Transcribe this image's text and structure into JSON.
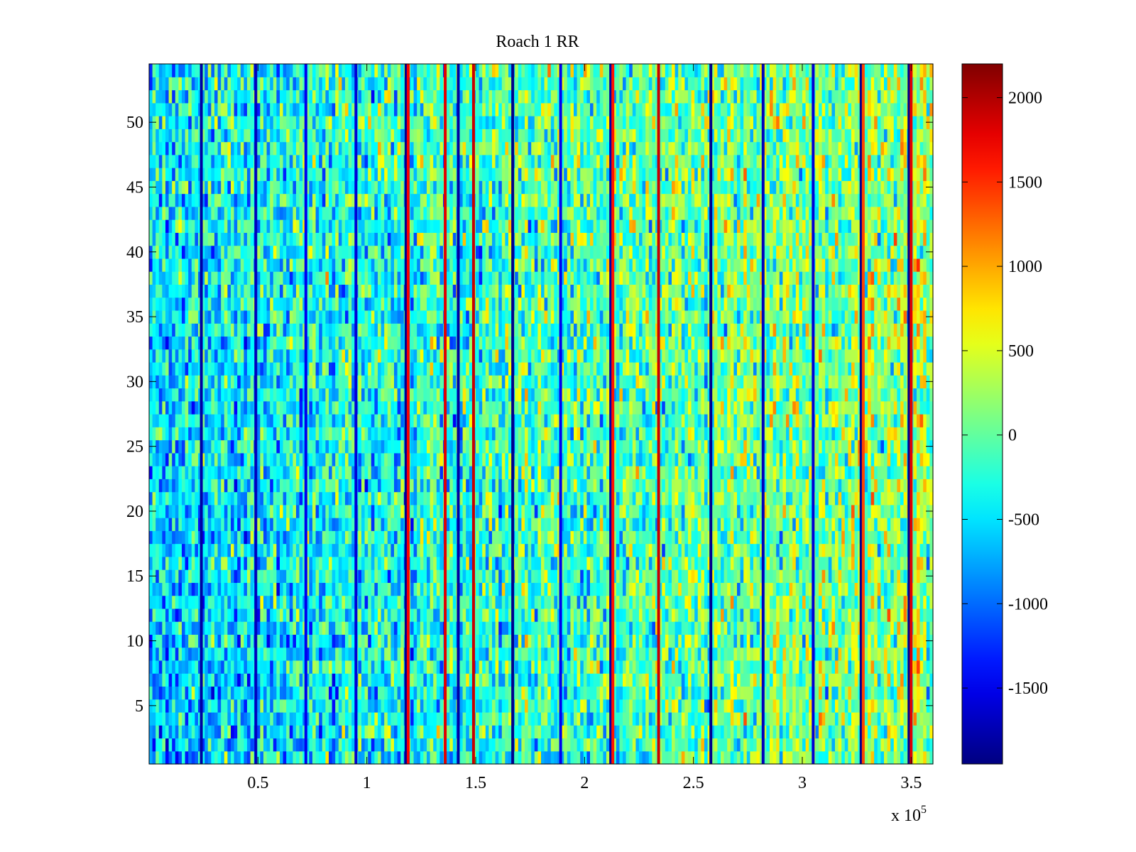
{
  "chart_data": {
    "type": "heatmap",
    "title": "Roach 1 RR",
    "xlabel": "",
    "ylabel": "",
    "x_multiplier_label": {
      "base": "x 10",
      "exponent": "5"
    },
    "xlim": [
      0,
      3.6
    ],
    "ylim": [
      0.5,
      54.5
    ],
    "rows": 54,
    "x_ticks": [
      {
        "value": 0.5,
        "label": "0.5"
      },
      {
        "value": 1.0,
        "label": "1"
      },
      {
        "value": 1.5,
        "label": "1.5"
      },
      {
        "value": 2.0,
        "label": "2"
      },
      {
        "value": 2.5,
        "label": "2.5"
      },
      {
        "value": 3.0,
        "label": "3"
      },
      {
        "value": 3.5,
        "label": "3.5"
      }
    ],
    "y_ticks": [
      {
        "value": 5,
        "label": "5"
      },
      {
        "value": 10,
        "label": "10"
      },
      {
        "value": 15,
        "label": "15"
      },
      {
        "value": 20,
        "label": "20"
      },
      {
        "value": 25,
        "label": "25"
      },
      {
        "value": 30,
        "label": "30"
      },
      {
        "value": 35,
        "label": "35"
      },
      {
        "value": 40,
        "label": "40"
      },
      {
        "value": 45,
        "label": "45"
      },
      {
        "value": 50,
        "label": "50"
      }
    ],
    "colorbar": {
      "range": [
        -1950,
        2200
      ],
      "colormap": "jet",
      "ticks": [
        {
          "value": 2000,
          "label": "2000"
        },
        {
          "value": 1500,
          "label": "1500"
        },
        {
          "value": 1000,
          "label": "1000"
        },
        {
          "value": 500,
          "label": "500"
        },
        {
          "value": 0,
          "label": "0"
        },
        {
          "value": -500,
          "label": "-500"
        },
        {
          "value": -1000,
          "label": "-1000"
        },
        {
          "value": -1500,
          "label": "-1500"
        }
      ]
    },
    "stripes": [
      {
        "x": 0.24,
        "value": -1800
      },
      {
        "x": 0.49,
        "value": -1700
      },
      {
        "x": 0.72,
        "value": -1500
      },
      {
        "x": 0.95,
        "value": -1600
      },
      {
        "x": 1.18,
        "value": -1900
      },
      {
        "x": 1.19,
        "value": 1700
      },
      {
        "x": 1.36,
        "value": 1800
      },
      {
        "x": 1.42,
        "value": -1800
      },
      {
        "x": 1.49,
        "value": 1900
      },
      {
        "x": 1.67,
        "value": -1900
      },
      {
        "x": 1.89,
        "value": -1500
      },
      {
        "x": 2.12,
        "value": -1800
      },
      {
        "x": 2.13,
        "value": 1600
      },
      {
        "x": 2.34,
        "value": 1900
      },
      {
        "x": 2.58,
        "value": -1900
      },
      {
        "x": 2.82,
        "value": -1700
      },
      {
        "x": 3.05,
        "value": -1600
      },
      {
        "x": 3.27,
        "value": -1900
      },
      {
        "x": 3.28,
        "value": 1400
      },
      {
        "x": 3.49,
        "value": -1900
      },
      {
        "x": 3.5,
        "value": 1800
      }
    ],
    "background_pattern": {
      "summary": "noisy values mostly between -800 and 700; more negative (blue) for low x and low rows, more positive (yellow) toward high x",
      "mean_low_x": -350,
      "mean_high_x": 250,
      "spread": 420,
      "seed": 12345
    }
  }
}
